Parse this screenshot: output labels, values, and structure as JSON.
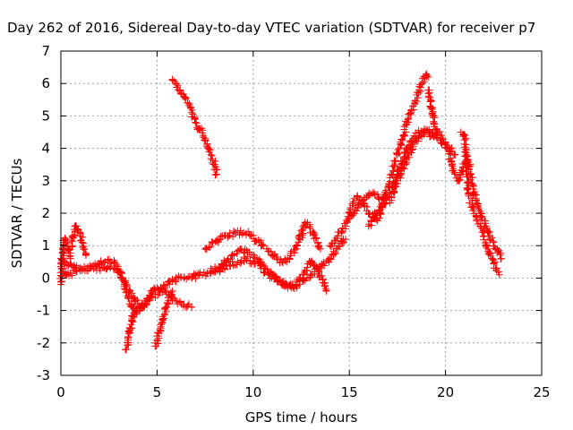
{
  "chart_data": {
    "type": "scatter",
    "title": "Day 262 of 2016, Sidereal Day-to-day VTEC variation (SDTVAR) for receiver p7",
    "xlabel": "GPS time / hours",
    "ylabel": "SDTVAR / TECUs",
    "xlim": [
      0,
      25
    ],
    "ylim": [
      -3,
      7
    ],
    "xticks": [
      "0",
      "5",
      "10",
      "15",
      "20",
      "25"
    ],
    "yticks": [
      "-3",
      "-2",
      "-1",
      "0",
      "1",
      "2",
      "3",
      "4",
      "5",
      "6",
      "7"
    ],
    "grid": true,
    "marker": "plus",
    "color": "#ff0000",
    "series": [
      {
        "x": [
          0.0,
          0.2,
          0.4,
          0.6,
          0.8,
          1.0,
          1.3,
          1.6,
          2.0,
          2.4,
          2.8,
          3.0,
          3.2,
          3.4,
          3.6,
          3.8,
          4.0,
          4.2,
          4.4,
          4.6,
          4.8,
          5.0,
          5.2,
          5.4,
          5.6,
          5.8,
          6.0,
          6.2,
          6.4,
          6.6,
          6.8
        ],
        "y": [
          0.6,
          0.5,
          0.4,
          0.35,
          0.3,
          0.3,
          0.3,
          0.35,
          0.3,
          0.3,
          0.3,
          0.2,
          0.0,
          -0.2,
          -0.4,
          -0.6,
          -0.8,
          -0.9,
          -0.8,
          -0.6,
          -0.4,
          -0.3,
          -0.3,
          -0.4,
          -0.5,
          -0.6,
          -0.7,
          -0.75,
          -0.8,
          -0.85,
          -0.9
        ]
      },
      {
        "x": [
          0.1,
          0.3,
          0.5,
          0.8,
          1.1,
          1.5,
          1.9,
          2.3,
          2.6,
          2.9,
          3.1,
          3.3,
          3.5,
          3.7,
          3.9,
          4.1,
          4.3,
          4.6,
          4.9,
          5.2,
          5.5,
          5.8,
          6.1,
          6.4,
          6.7,
          7.0
        ],
        "y": [
          0.2,
          0.1,
          0.15,
          0.2,
          0.25,
          0.3,
          0.4,
          0.5,
          0.5,
          0.4,
          0.2,
          -0.2,
          -0.6,
          -0.9,
          -1.0,
          -1.0,
          -0.9,
          -0.7,
          -0.5,
          -0.35,
          -0.2,
          -0.1,
          0.0,
          0.0,
          0.05,
          0.1
        ]
      },
      {
        "x": [
          0.0,
          0.05,
          0.1,
          0.15,
          0.2,
          0.3,
          0.4,
          0.5
        ],
        "y": [
          -0.2,
          0.3,
          0.8,
          1.1,
          1.2,
          1.1,
          0.9,
          0.6
        ]
      },
      {
        "x": [
          0.6,
          0.7,
          0.8,
          0.9,
          1.0,
          1.1,
          1.2,
          1.3
        ],
        "y": [
          1.0,
          1.5,
          1.6,
          1.5,
          1.3,
          1.1,
          0.9,
          0.7
        ]
      },
      {
        "x": [
          3.4,
          3.5,
          3.6,
          3.7,
          3.8,
          3.9,
          4.0
        ],
        "y": [
          -2.2,
          -2.0,
          -1.6,
          -1.3,
          -1.1,
          -0.95,
          -0.85
        ]
      },
      {
        "x": [
          4.9,
          5.0,
          5.1,
          5.2,
          5.3,
          5.4,
          5.5,
          5.6,
          5.7,
          5.8
        ],
        "y": [
          -2.1,
          -1.9,
          -1.7,
          -1.5,
          -1.3,
          -1.1,
          -0.9,
          -0.7,
          -0.55,
          -0.4
        ]
      },
      {
        "x": [
          5.8,
          6.0,
          6.2,
          6.4,
          6.6,
          6.8,
          7.0,
          7.2,
          7.4,
          7.6,
          7.8,
          8.0,
          8.1
        ],
        "y": [
          6.1,
          6.0,
          5.8,
          5.6,
          5.4,
          5.1,
          4.8,
          4.6,
          4.4,
          4.1,
          3.8,
          3.5,
          3.2
        ]
      },
      {
        "x": [
          6.8,
          7.2,
          7.6,
          8.0,
          8.4,
          8.8,
          9.2,
          9.6,
          10.0,
          10.4,
          10.8,
          11.2,
          11.6,
          12.0,
          12.4,
          12.8,
          13.2,
          13.6,
          14.0,
          14.4,
          14.8
        ],
        "y": [
          0.0,
          0.1,
          0.15,
          0.2,
          0.3,
          0.4,
          0.5,
          0.6,
          0.5,
          0.3,
          0.1,
          0.0,
          -0.2,
          -0.3,
          -0.2,
          0.0,
          0.2,
          0.4,
          0.6,
          0.9,
          1.2
        ]
      },
      {
        "x": [
          7.5,
          7.9,
          8.3,
          8.7,
          9.1,
          9.5,
          9.9,
          10.3,
          10.7,
          11.1,
          11.5,
          11.9,
          12.3,
          12.7,
          13.1,
          13.5
        ],
        "y": [
          0.9,
          1.1,
          1.2,
          1.3,
          1.4,
          1.4,
          1.3,
          1.1,
          0.9,
          0.7,
          0.5,
          0.6,
          1.0,
          1.7,
          1.4,
          0.9
        ]
      },
      {
        "x": [
          7.8,
          8.2,
          8.6,
          9.0,
          9.4,
          9.8,
          10.2,
          10.6,
          11.0,
          11.4,
          11.8,
          12.2,
          12.6,
          13.0,
          13.4,
          13.8
        ],
        "y": [
          0.2,
          0.3,
          0.5,
          0.7,
          0.9,
          0.8,
          0.6,
          0.3,
          0.1,
          -0.1,
          -0.3,
          -0.2,
          0.1,
          0.5,
          0.2,
          -0.4
        ]
      },
      {
        "x": [
          14.0,
          14.4,
          14.8,
          15.0,
          15.2,
          15.4,
          15.6,
          15.8,
          16.0,
          16.2,
          16.4,
          16.6,
          16.8,
          17.0,
          17.2,
          17.4,
          17.6,
          17.8,
          18.0,
          18.2,
          18.4,
          18.6,
          18.8,
          19.0,
          19.1
        ],
        "y": [
          1.0,
          1.3,
          1.6,
          2.0,
          2.3,
          2.5,
          2.4,
          2.2,
          2.0,
          1.9,
          1.8,
          2.0,
          2.4,
          2.8,
          3.2,
          3.6,
          4.0,
          4.4,
          4.8,
          5.1,
          5.4,
          5.7,
          6.0,
          6.3,
          6.2
        ]
      },
      {
        "x": [
          15.0,
          15.3,
          15.6,
          15.9,
          16.2,
          16.5,
          16.8,
          17.1,
          17.4,
          17.7,
          18.0,
          18.3,
          18.6,
          18.9,
          19.2,
          19.5
        ],
        "y": [
          1.9,
          2.1,
          2.3,
          2.5,
          2.6,
          2.5,
          2.4,
          2.6,
          3.0,
          3.5,
          4.0,
          4.3,
          4.5,
          4.6,
          4.5,
          4.4
        ]
      },
      {
        "x": [
          16.0,
          16.3,
          16.6,
          16.9,
          17.2,
          17.5,
          17.8,
          18.1,
          18.4,
          18.7,
          19.0,
          19.3,
          19.6,
          19.9,
          20.2,
          20.5
        ],
        "y": [
          1.6,
          1.9,
          2.2,
          2.3,
          2.5,
          3.0,
          3.4,
          3.8,
          4.2,
          4.4,
          4.5,
          4.4,
          4.3,
          4.2,
          4.0,
          3.8
        ]
      },
      {
        "x": [
          19.1,
          19.3,
          19.5,
          19.7,
          19.9,
          20.1,
          20.3,
          20.5,
          20.7,
          20.9,
          21.1,
          21.3,
          21.5,
          21.7,
          21.9,
          22.1,
          22.3,
          22.5,
          22.7,
          22.9
        ],
        "y": [
          5.8,
          5.2,
          4.6,
          4.4,
          4.2,
          4.0,
          3.6,
          3.2,
          3.0,
          3.4,
          3.8,
          3.2,
          2.6,
          2.2,
          1.9,
          1.6,
          1.3,
          1.1,
          0.9,
          0.6
        ]
      },
      {
        "x": [
          20.8,
          21.0,
          21.2,
          21.4,
          21.6,
          21.8,
          22.0,
          22.2,
          22.4,
          22.6,
          22.8
        ],
        "y": [
          4.5,
          4.4,
          2.6,
          2.2,
          1.9,
          1.6,
          1.3,
          0.9,
          0.6,
          0.3,
          0.1
        ]
      }
    ]
  }
}
